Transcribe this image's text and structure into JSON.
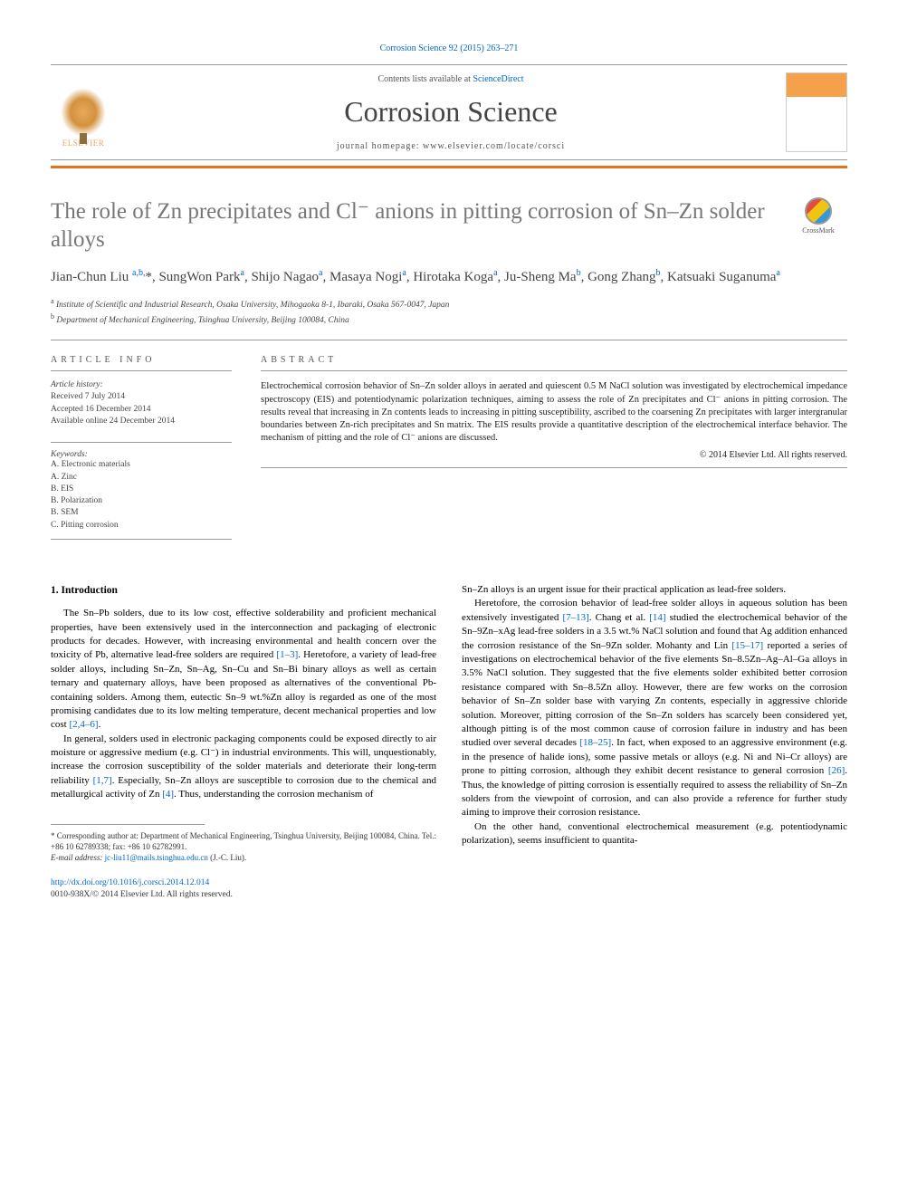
{
  "citation": "Corrosion Science 92 (2015) 263–271",
  "header": {
    "contents_prefix": "Contents lists available at ",
    "contents_link": "ScienceDirect",
    "journal": "Corrosion Science",
    "homepage_prefix": "journal homepage: ",
    "homepage_url": "www.elsevier.com/locate/corsci",
    "publisher": "ELSEVIER"
  },
  "title": "The role of Zn precipitates and Cl⁻ anions in pitting corrosion of Sn–Zn solder alloys",
  "crossmark_label": "CrossMark",
  "authors_html": "Jian-Chun Liu <span class='sup'>a,b,</span>*, SungWon Park<span class='sup'>a</span>, Shijo Nagao<span class='sup'>a</span>, Masaya Nogi<span class='sup'>a</span>, Hirotaka Koga<span class='sup'>a</span>, Ju-Sheng Ma<span class='sup'>b</span>, Gong Zhang<span class='sup'>b</span>, Katsuaki Suganuma<span class='sup'>a</span>",
  "affiliations": [
    "Institute of Scientific and Industrial Research, Osaka University, Mihogaoka 8-1, Ibaraki, Osaka 567-0047, Japan",
    "Department of Mechanical Engineering, Tsinghua University, Beijing 100084, China"
  ],
  "article_info": {
    "header": "ARTICLE INFO",
    "history_label": "Article history:",
    "history": [
      "Received 7 July 2014",
      "Accepted 16 December 2014",
      "Available online 24 December 2014"
    ],
    "keywords_label": "Keywords:",
    "keywords": [
      "A. Electronic materials",
      "A. Zinc",
      "B. EIS",
      "B. Polarization",
      "B. SEM",
      "C. Pitting corrosion"
    ]
  },
  "abstract": {
    "header": "ABSTRACT",
    "text": "Electrochemical corrosion behavior of Sn–Zn solder alloys in aerated and quiescent 0.5 M NaCl solution was investigated by electrochemical impedance spectroscopy (EIS) and potentiodynamic polarization techniques, aiming to assess the role of Zn precipitates and Cl⁻ anions in pitting corrosion. The results reveal that increasing in Zn contents leads to increasing in pitting susceptibility, ascribed to the coarsening Zn precipitates with larger intergranular boundaries between Zn-rich precipitates and Sn matrix. The EIS results provide a quantitative description of the electrochemical interface behavior. The mechanism of pitting and the role of Cl⁻ anions are discussed.",
    "copyright": "© 2014 Elsevier Ltd. All rights reserved."
  },
  "section1": {
    "heading": "1. Introduction",
    "p1": "The Sn–Pb solders, due to its low cost, effective solderability and proficient mechanical properties, have been extensively used in the interconnection and packaging of electronic products for decades. However, with increasing environmental and health concern over the toxicity of Pb, alternative lead-free solders are required ",
    "p1_ref1": "[1–3]",
    "p1_cont": ". Heretofore, a variety of lead-free solder alloys, including Sn–Zn, Sn–Ag, Sn–Cu and Sn–Bi binary alloys as well as certain ternary and quaternary alloys, have been proposed as alternatives of the conventional Pb-containing solders. Among them, eutectic Sn–9 wt.%Zn alloy is regarded as one of the most promising candidates due to its low melting temperature, decent mechanical properties and low cost ",
    "p1_ref2": "[2,4–6]",
    "p1_end": ".",
    "p2": "In general, solders used in electronic packaging components could be exposed directly to air moisture or aggressive medium (e.g. Cl⁻) in industrial environments. This will, unquestionably, increase the corrosion susceptibility of the solder materials and deteriorate their long-term reliability ",
    "p2_ref1": "[1,7]",
    "p2_cont": ". Especially, Sn–Zn alloys are susceptible to corrosion due to the chemical and metallurgical activity of Zn ",
    "p2_ref2": "[4]",
    "p2_end": ". Thus, understanding the corrosion mechanism of",
    "p3_start": "Sn–Zn alloys is an urgent issue for their practical application as lead-free solders.",
    "p4": "Heretofore, the corrosion behavior of lead-free solder alloys in aqueous solution has been extensively investigated ",
    "p4_ref1": "[7–13]",
    "p4_cont1": ". Chang et al. ",
    "p4_ref2": "[14]",
    "p4_cont2": " studied the electrochemical behavior of the Sn–9Zn–xAg lead-free solders in a 3.5 wt.% NaCl solution and found that Ag addition enhanced the corrosion resistance of the Sn–9Zn solder. Mohanty and Lin ",
    "p4_ref3": "[15–17]",
    "p4_cont3": " reported a series of investigations on electrochemical behavior of the five elements Sn–8.5Zn–Ag–Al–Ga alloys in 3.5% NaCl solution. They suggested that the five elements solder exhibited better corrosion resistance compared with Sn–8.5Zn alloy. However, there are few works on the corrosion behavior of Sn–Zn solder base with varying Zn contents, especially in aggressive chloride solution. Moreover, pitting corrosion of the Sn–Zn solders has scarcely been considered yet, although pitting is of the most common cause of corrosion failure in industry and has been studied over several decades ",
    "p4_ref4": "[18–25]",
    "p4_cont4": ". In fact, when exposed to an aggressive environment (e.g. in the presence of halide ions), some passive metals or alloys (e.g. Ni and Ni–Cr alloys) are prone to pitting corrosion, although they exhibit decent resistance to general corrosion ",
    "p4_ref5": "[26]",
    "p4_cont5": ". Thus, the knowledge of pitting corrosion is essentially required to assess the reliability of Sn–Zn solders from the viewpoint of corrosion, and can also provide a reference for further study aiming to improve their corrosion resistance.",
    "p5": "On the other hand, conventional electrochemical measurement (e.g. potentiodynamic polarization), seems insufficient to quantita-"
  },
  "footnote": {
    "corr": "* Corresponding author at: Department of Mechanical Engineering, Tsinghua University, Beijing 100084, China. Tel.: +86 10 62789338; fax: +86 10 62782991.",
    "email_label": "E-mail address: ",
    "email": "jc-liu11@mails.tsinghua.edu.cn",
    "email_suffix": " (J.-C. Liu)."
  },
  "footer": {
    "doi": "http://dx.doi.org/10.1016/j.corsci.2014.12.014",
    "issn_line": "0010-938X/© 2014 Elsevier Ltd. All rights reserved."
  },
  "colors": {
    "link": "#0066cc",
    "orange_bar": "#e8701a",
    "title_gray": "#777777",
    "text": "#222222"
  }
}
